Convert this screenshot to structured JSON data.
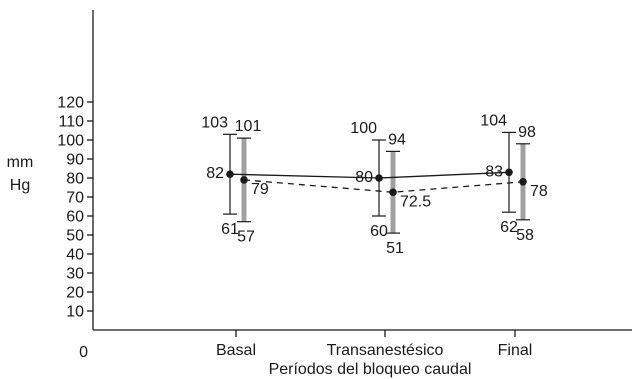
{
  "chart_data": {
    "type": "line",
    "xlabel": "Períodos del bloqueo caudal",
    "ylabel": [
      "mm",
      "Hg"
    ],
    "categories": [
      "Basal",
      "Transanestésico",
      "Final"
    ],
    "origin_label": "0",
    "yticks": [
      10,
      20,
      30,
      40,
      50,
      60,
      70,
      80,
      90,
      100,
      110,
      120
    ],
    "ylim": [
      0,
      130
    ],
    "grid": false,
    "legend": "none",
    "series": [
      {
        "style": "solid",
        "color": "#1a1a1a",
        "points": [
          {
            "category": "Basal",
            "mean": 82,
            "mean_label": "82",
            "upper": 103,
            "upper_label": "103",
            "lower": 61,
            "lower_label": "61"
          },
          {
            "category": "Transanestésico",
            "mean": 80,
            "mean_label": "80",
            "upper": 100,
            "upper_label": "100",
            "lower": 60,
            "lower_label": "60"
          },
          {
            "category": "Final",
            "mean": 83,
            "mean_label": "83",
            "upper": 104,
            "upper_label": "104",
            "lower": 62,
            "lower_label": "62"
          }
        ]
      },
      {
        "style": "dashed",
        "color": "#1a1a1a",
        "errorbar_color": "#a0a0a0",
        "points": [
          {
            "category": "Basal",
            "mean": 79,
            "mean_label": "79",
            "upper": 101,
            "upper_label": "101",
            "lower": 57,
            "lower_label": "57"
          },
          {
            "category": "Transanestésico",
            "mean": 72.5,
            "mean_label": "72.5",
            "upper": 94,
            "upper_label": "94",
            "lower": 51,
            "lower_label": "51"
          },
          {
            "category": "Final",
            "mean": 78,
            "mean_label": "78",
            "upper": 98,
            "upper_label": "98",
            "lower": 58,
            "lower_label": "58"
          }
        ]
      }
    ]
  }
}
